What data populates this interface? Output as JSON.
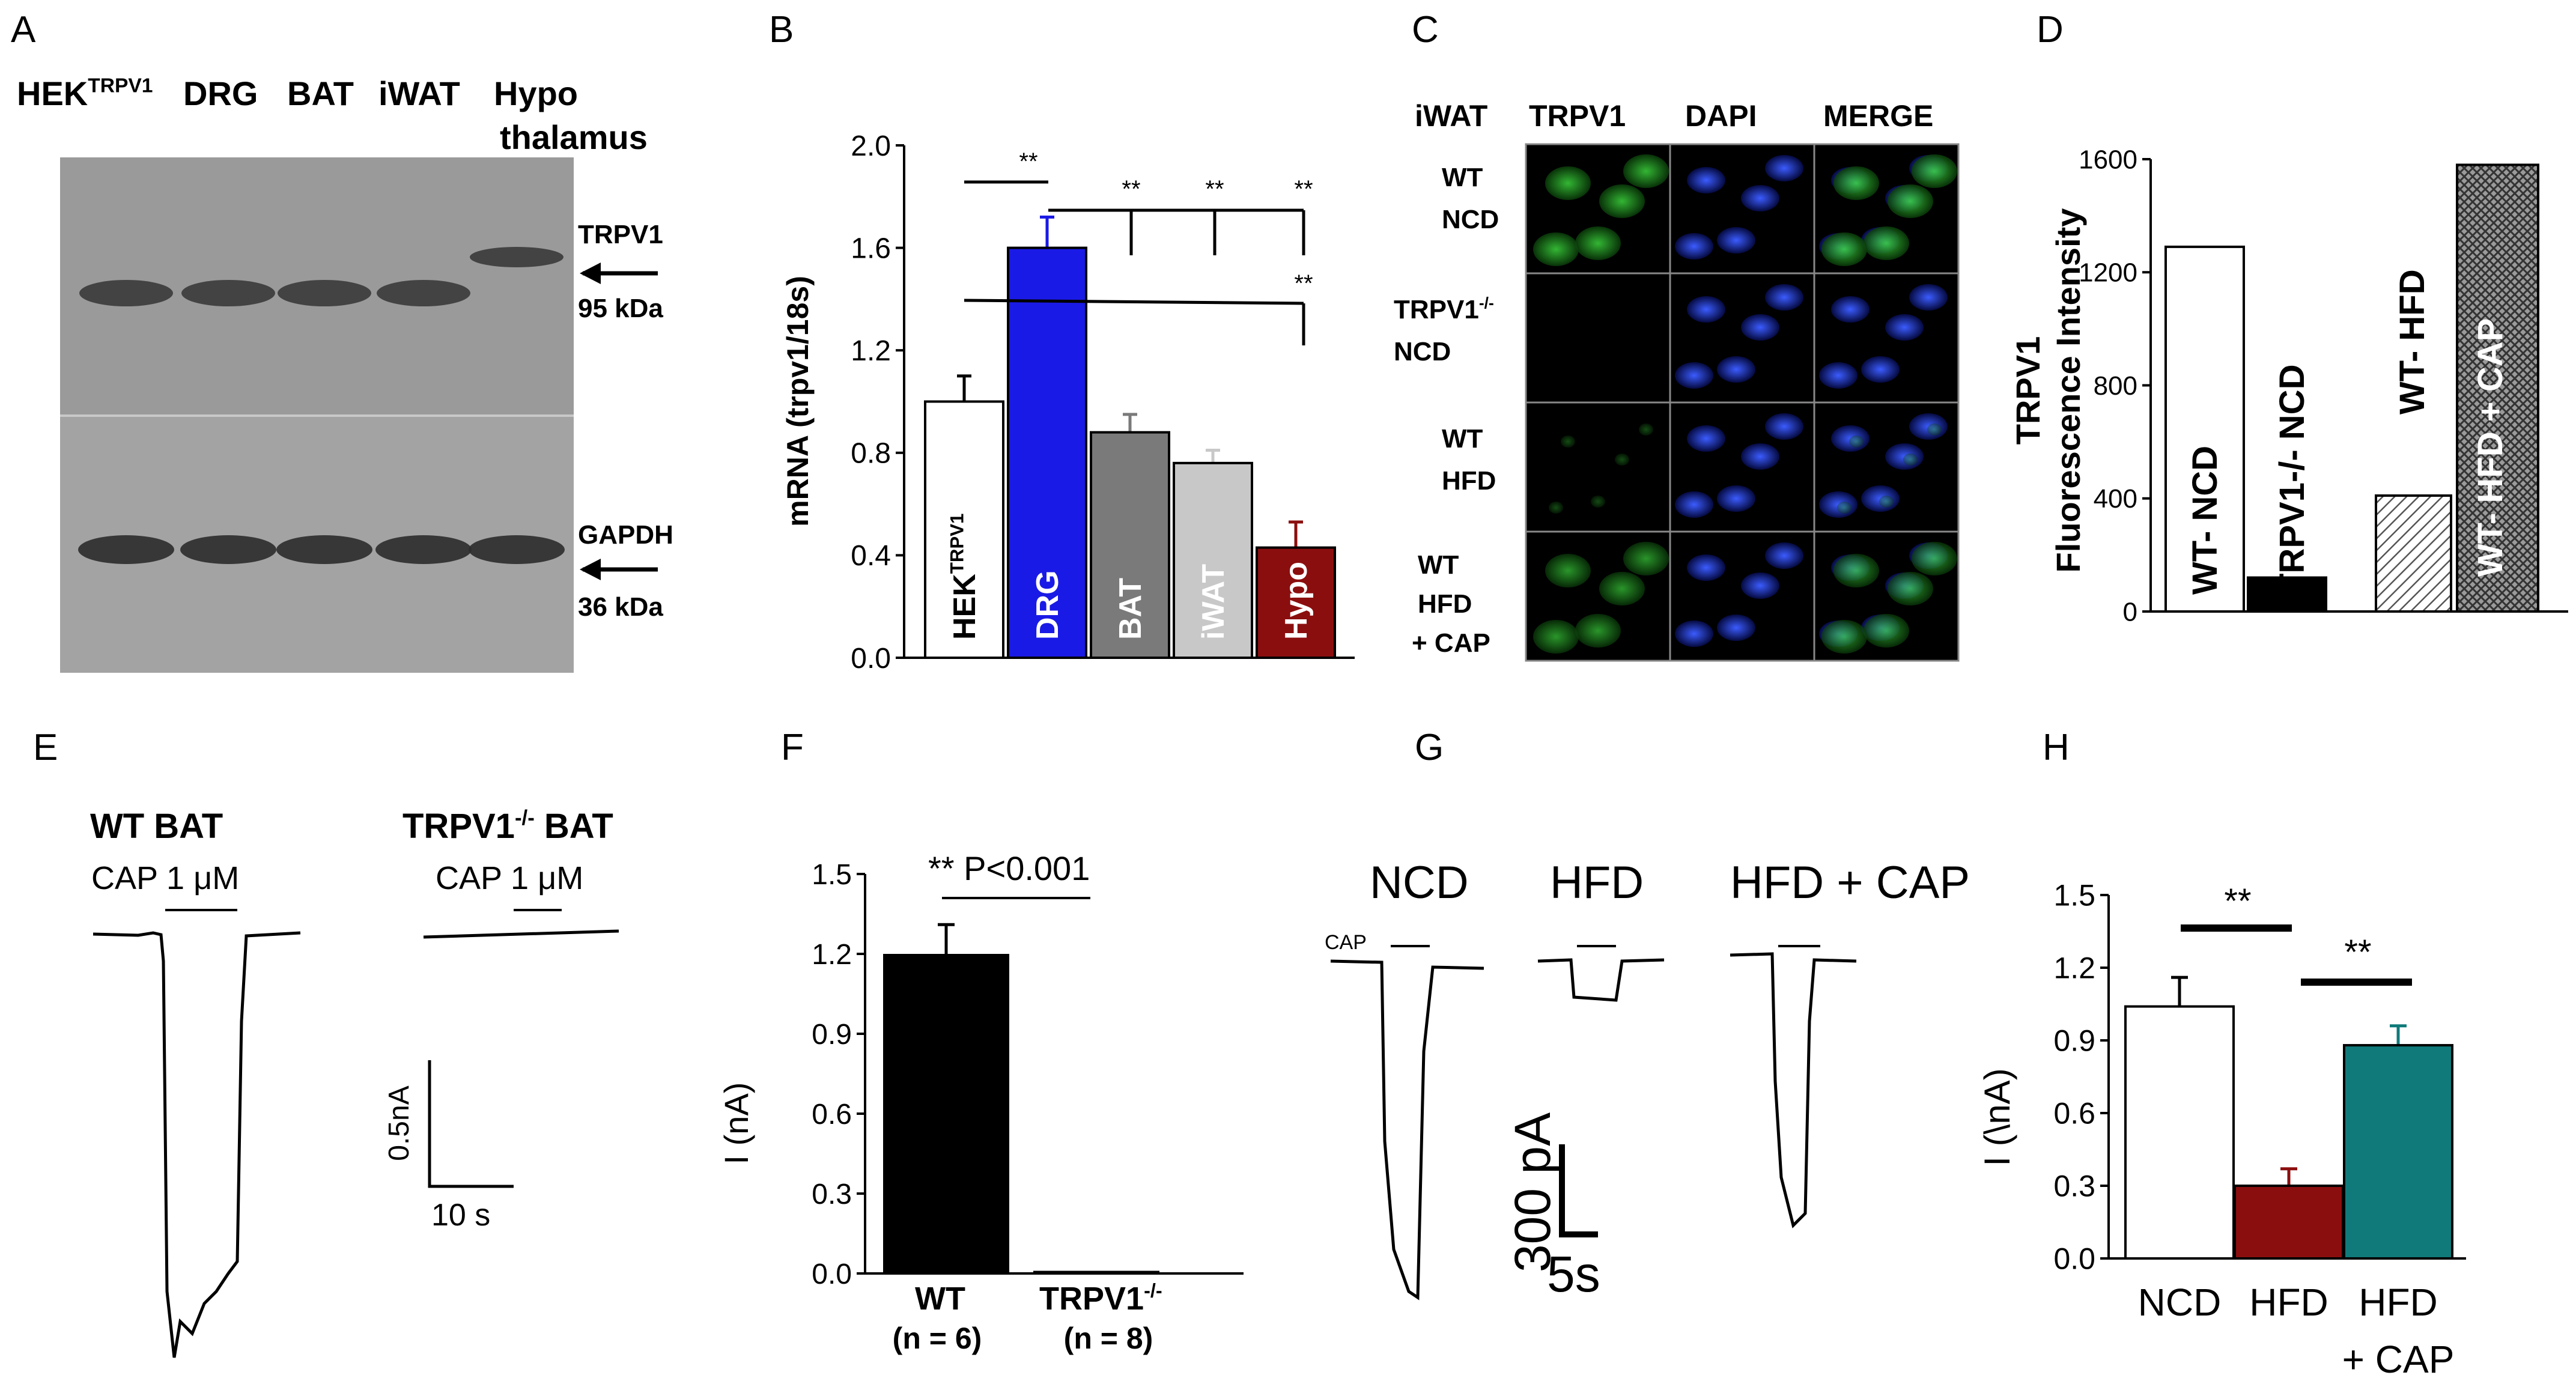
{
  "panel_letters": [
    "A",
    "B",
    "C",
    "D",
    "E",
    "F",
    "G",
    "H"
  ],
  "panel_a": {
    "lanes": [
      "HEK",
      "DRG",
      "BAT",
      "iWAT",
      "Hypo"
    ],
    "lane_sup": "TRPV1",
    "lane_last_line2": "thalamus",
    "bands": [
      {
        "label": "TRPV1",
        "size": "95 kDa"
      },
      {
        "label": "GAPDH",
        "size": "36 kDa"
      }
    ]
  },
  "chart_data": [
    {
      "panel": "B",
      "type": "bar",
      "categories": [
        "HEK",
        "DRG",
        "BAT",
        "iWAT",
        "Hypo"
      ],
      "category_sup": [
        "TRPV1",
        "",
        "",
        "",
        ""
      ],
      "values": [
        1.0,
        1.6,
        0.88,
        0.76,
        0.43
      ],
      "errors": [
        0.1,
        0.12,
        0.07,
        0.05,
        0.1
      ],
      "colors": [
        "#ffffff",
        "#1a1ae6",
        "#7a7a7a",
        "#c8c8c8",
        "#8b0e0e"
      ],
      "ylabel": "mRNA (trpv1/18s)",
      "ylim": [
        0.0,
        2.0
      ],
      "yticks": [
        "0.0",
        "0.4",
        "0.8",
        "1.2",
        "1.6",
        "2.0"
      ],
      "significance": [
        "**",
        "**",
        "**",
        "**",
        "**"
      ]
    },
    {
      "panel": "D",
      "type": "bar",
      "categories": [
        "WT- NCD",
        "TRPV1-/- NCD",
        "WT- HFD",
        "WT- HFD + CAP"
      ],
      "values": [
        1290,
        120,
        410,
        1580
      ],
      "ylabel_line1": "TRPV1",
      "ylabel_line2": "Fluorescence Intensity",
      "ylim": [
        0,
        1600
      ],
      "yticks": [
        "0",
        "400",
        "800",
        "1200",
        "1600"
      ]
    },
    {
      "panel": "F",
      "type": "bar",
      "categories": [
        "WT",
        "TRPV1"
      ],
      "category_sup": [
        "",
        "-/-"
      ],
      "n_labels": [
        "(n = 6)",
        "(n = 8)"
      ],
      "values": [
        1.2,
        0.01
      ],
      "errors": [
        0.11,
        0.0
      ],
      "ylabel": "I (nA)",
      "ylim": [
        0.0,
        1.5
      ],
      "yticks": [
        "0.0",
        "0.3",
        "0.6",
        "0.9",
        "1.2",
        "1.5"
      ],
      "annotation": "** P<0.001"
    },
    {
      "panel": "H",
      "type": "bar",
      "categories": [
        "NCD",
        "HFD",
        "HFD"
      ],
      "category_line2": [
        "",
        "",
        "+ CAP"
      ],
      "values": [
        1.04,
        0.3,
        0.88
      ],
      "errors": [
        0.12,
        0.07,
        0.08
      ],
      "colors": [
        "#ffffff",
        "#8b0e0e",
        "#107a7a"
      ],
      "ylabel": "I (\\nA)",
      "ylim": [
        0.0,
        1.5
      ],
      "yticks": [
        "0.0",
        "0.3",
        "0.6",
        "0.9",
        "1.2",
        "1.5"
      ],
      "significance": [
        "**",
        "**"
      ]
    }
  ],
  "panel_c": {
    "tissue": "iWAT",
    "columns": [
      "TRPV1",
      "DAPI",
      "MERGE"
    ],
    "rows": [
      {
        "line1": "WT",
        "line2": "NCD",
        "line3": ""
      },
      {
        "line1": "TRPV1",
        "sup": "-/-",
        "line2": "NCD",
        "line3": ""
      },
      {
        "line1": "WT",
        "line2": "HFD",
        "line3": ""
      },
      {
        "line1": "WT",
        "line2": "HFD",
        "line3": "+ CAP"
      }
    ]
  },
  "panel_e": {
    "trace1_title": "WT  BAT",
    "trace2_title": "TRPV1",
    "trace2_sup": "-/-",
    "trace2_suffix": " BAT",
    "stim": "CAP 1 μM",
    "scale_y": "0.5nA",
    "scale_x": "10 s"
  },
  "panel_g": {
    "conditions": [
      "NCD",
      "HFD",
      "HFD + CAP"
    ],
    "stim": "CAP",
    "scale_y": "300 pA",
    "scale_x": "5s"
  }
}
